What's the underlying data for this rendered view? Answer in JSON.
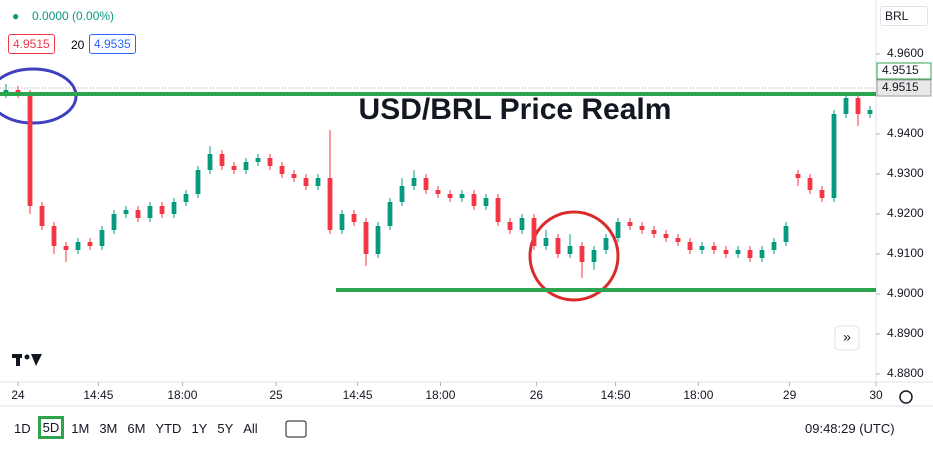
{
  "header": {
    "change": "0.0000 (0.00%)",
    "bid": 4.9515,
    "spread": 20,
    "ask": 4.9535,
    "currency": "BRL"
  },
  "toolbar": {
    "ranges": [
      "1D",
      "5D",
      "1M",
      "3M",
      "6M",
      "YTD",
      "1Y",
      "5Y",
      "All"
    ],
    "active": "5D",
    "clock": "09:48:29 (UTC)"
  },
  "chart_data": {
    "type": "candlestick",
    "title": "USD/BRL Price Realm",
    "up_color": "#089981",
    "down_color": "#f23645",
    "xlim": [
      0,
      73
    ],
    "ylim": [
      4.878,
      4.9735
    ],
    "yticks": [
      {
        "value": 4.88,
        "label": "4.8800"
      },
      {
        "value": 4.89,
        "label": "4.8900"
      },
      {
        "value": 4.9,
        "label": "4.9000"
      },
      {
        "value": 4.91,
        "label": "4.9100"
      },
      {
        "value": 4.92,
        "label": "4.9200"
      },
      {
        "value": 4.93,
        "label": "4.9300"
      },
      {
        "value": 4.94,
        "label": "4.9400"
      },
      {
        "value": 4.96,
        "label": "4.9600"
      }
    ],
    "xticks": [
      {
        "value": 1.5,
        "label": "24"
      },
      {
        "value": 8.2,
        "label": "14:45"
      },
      {
        "value": 15.2,
        "label": "18:00"
      },
      {
        "value": 23,
        "label": "25"
      },
      {
        "value": 29.8,
        "label": "14:45"
      },
      {
        "value": 36.7,
        "label": "18:00"
      },
      {
        "value": 44.7,
        "label": "26"
      },
      {
        "value": 51.3,
        "label": "14:50"
      },
      {
        "value": 58.2,
        "label": "18:00"
      },
      {
        "value": 65.8,
        "label": "29"
      },
      {
        "value": 73,
        "label": "30"
      }
    ],
    "price_tags": [
      {
        "value": 4.9515,
        "color": "#2da44e"
      },
      {
        "value": 4.9515,
        "color": "#9e9e9e"
      }
    ],
    "annotation_lines": [
      {
        "value": 4.95,
        "from": 0,
        "color": "#2da44e"
      },
      {
        "value": 4.901,
        "from": 28,
        "color": "#2da44e"
      }
    ],
    "candles": [
      [
        4.95,
        4.9525,
        4.949,
        4.951
      ],
      [
        4.951,
        4.952,
        4.949,
        4.95
      ],
      [
        4.95,
        4.951,
        4.92,
        4.922
      ],
      [
        4.922,
        4.923,
        4.916,
        4.917
      ],
      [
        4.917,
        4.918,
        4.91,
        4.912
      ],
      [
        4.912,
        4.913,
        4.908,
        4.911
      ],
      [
        4.911,
        4.914,
        4.91,
        4.913
      ],
      [
        4.913,
        4.914,
        4.911,
        4.912
      ],
      [
        4.912,
        4.917,
        4.911,
        4.916
      ],
      [
        4.916,
        4.921,
        4.915,
        4.92
      ],
      [
        4.92,
        4.922,
        4.919,
        4.921
      ],
      [
        4.921,
        4.922,
        4.918,
        4.919
      ],
      [
        4.919,
        4.923,
        4.918,
        4.922
      ],
      [
        4.922,
        4.923,
        4.919,
        4.92
      ],
      [
        4.92,
        4.924,
        4.919,
        4.923
      ],
      [
        4.923,
        4.926,
        4.922,
        4.925
      ],
      [
        4.925,
        4.932,
        4.924,
        4.931
      ],
      [
        4.931,
        4.937,
        4.93,
        4.935
      ],
      [
        4.935,
        4.936,
        4.931,
        4.932
      ],
      [
        4.932,
        4.933,
        4.93,
        4.931
      ],
      [
        4.931,
        4.934,
        4.93,
        4.933
      ],
      [
        4.933,
        4.935,
        4.932,
        4.934
      ],
      [
        4.934,
        4.935,
        4.931,
        4.932
      ],
      [
        4.932,
        4.933,
        4.929,
        4.93
      ],
      [
        4.93,
        4.931,
        4.928,
        4.929
      ],
      [
        4.929,
        4.93,
        4.926,
        4.927
      ],
      [
        4.927,
        4.93,
        4.926,
        4.929
      ],
      [
        4.929,
        4.941,
        4.915,
        4.916
      ],
      [
        4.916,
        4.921,
        4.915,
        4.92
      ],
      [
        4.92,
        4.921,
        4.917,
        4.918
      ],
      [
        4.918,
        4.919,
        4.907,
        4.91
      ],
      [
        4.91,
        4.918,
        4.909,
        4.917
      ],
      [
        4.917,
        4.924,
        4.916,
        4.923
      ],
      [
        4.923,
        4.929,
        4.922,
        4.927
      ],
      [
        4.927,
        4.931,
        4.926,
        4.929
      ],
      [
        4.929,
        4.93,
        4.925,
        4.926
      ],
      [
        4.926,
        4.927,
        4.924,
        4.925
      ],
      [
        4.925,
        4.926,
        4.923,
        4.924
      ],
      [
        4.924,
        4.926,
        4.923,
        4.925
      ],
      [
        4.925,
        4.926,
        4.921,
        4.922
      ],
      [
        4.922,
        4.925,
        4.921,
        4.924
      ],
      [
        4.924,
        4.925,
        4.917,
        4.918
      ],
      [
        4.918,
        4.919,
        4.915,
        4.916
      ],
      [
        4.916,
        4.92,
        4.915,
        4.919
      ],
      [
        4.919,
        4.92,
        4.911,
        4.912
      ],
      [
        4.912,
        4.916,
        4.911,
        4.914
      ],
      [
        4.914,
        4.915,
        4.909,
        4.91
      ],
      [
        4.91,
        4.915,
        4.909,
        4.912
      ],
      [
        4.912,
        4.913,
        4.904,
        4.908
      ],
      [
        4.908,
        4.912,
        4.906,
        4.911
      ],
      [
        4.911,
        4.915,
        4.91,
        4.914
      ],
      [
        4.914,
        4.919,
        4.913,
        4.918
      ],
      [
        4.918,
        4.919,
        4.916,
        4.917
      ],
      [
        4.917,
        4.918,
        4.915,
        4.916
      ],
      [
        4.916,
        4.917,
        4.914,
        4.915
      ],
      [
        4.915,
        4.916,
        4.913,
        4.914
      ],
      [
        4.914,
        4.915,
        4.912,
        4.913
      ],
      [
        4.913,
        4.914,
        4.91,
        4.911
      ],
      [
        4.911,
        4.913,
        4.91,
        4.912
      ],
      [
        4.912,
        4.913,
        4.91,
        4.911
      ],
      [
        4.911,
        4.912,
        4.909,
        4.91
      ],
      [
        4.91,
        4.912,
        4.909,
        4.911
      ],
      [
        4.911,
        4.912,
        4.908,
        4.909
      ],
      [
        4.909,
        4.912,
        4.908,
        4.911
      ],
      [
        4.911,
        4.914,
        4.91,
        4.913
      ],
      [
        4.913,
        4.918,
        4.912,
        4.917
      ],
      [
        4.93,
        4.931,
        4.927,
        4.929
      ],
      [
        4.929,
        4.93,
        4.925,
        4.926
      ],
      [
        4.926,
        4.927,
        4.923,
        4.924
      ],
      [
        4.924,
        4.946,
        4.923,
        4.945
      ],
      [
        4.945,
        4.95,
        4.944,
        4.949
      ],
      [
        4.949,
        4.95,
        4.942,
        4.945
      ],
      [
        4.945,
        4.947,
        4.944,
        4.946
      ]
    ]
  }
}
